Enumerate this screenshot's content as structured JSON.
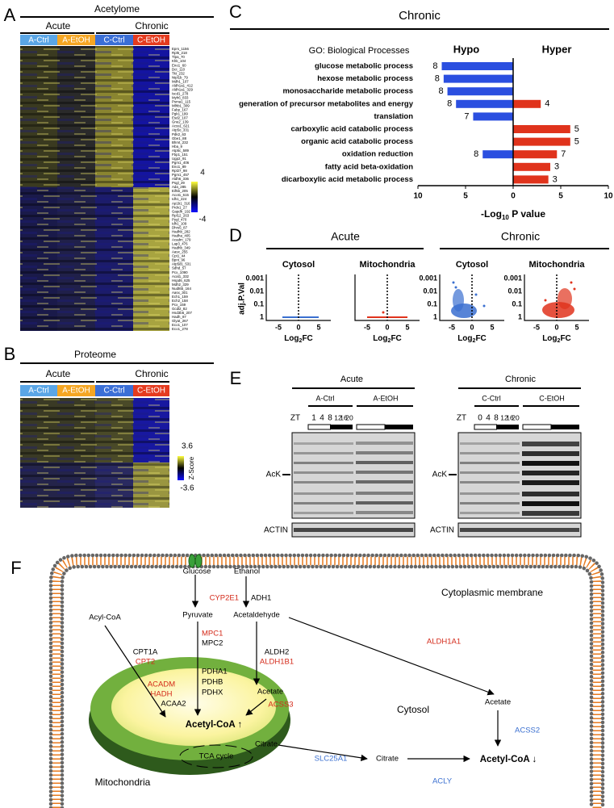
{
  "panels": {
    "A": {
      "letter": "A",
      "title": "Acetylome",
      "conditions": [
        "Acute",
        "Chronic"
      ],
      "groups": [
        "A-Ctrl",
        "A-EtOH",
        "C-Ctrl",
        "C-EtOH"
      ],
      "genes": [
        "Eprs_1156",
        "Rpl6_218",
        "Tlpa_70",
        "Khk_104",
        "Eno1_60",
        "Dct_110",
        "Tkt_232",
        "Nipl1b_79",
        "Mdh1_107",
        "Aldh1a1_412",
        "Aldh1a1_329",
        "Iscd1_278",
        "Myh6_833",
        "Psma1_115",
        "Mlhb1_309",
        "Fabp_167",
        "Pgk1_199",
        "Esd2_107",
        "Gne2_139",
        "Acss1_621",
        "Atp5o_331",
        "Pdk2_63",
        "Gbe1_88",
        "Bhmt_232",
        "Hba_9",
        "Atp5c_589",
        "Fbp1_151",
        "Ugp2_91",
        "Pgm1_406",
        "Eno1_89",
        "Rpl27_98",
        "Pgm1_457",
        "Aldh6_336",
        "Psgl_29",
        "Ada_285",
        "Eif5b_205",
        "Acot1_615",
        "Idh1_224",
        "Ap1b1_316",
        "Prdx1_27",
        "Gapdh_192",
        "Rpl12_263",
        "Pygl_470",
        "Idh1_109",
        "Dhrs5_87",
        "Hadhb_282",
        "Hadha_405",
        "Acadm_179",
        "Lap3_476",
        "Hadhb_349",
        "Aasx_255",
        "Cpt1_44",
        "Bpnt_96",
        "Atp5d1_531",
        "Sdhd_57",
        "Pcx_1090",
        "Acat1_332",
        "Hspd6_625",
        "Mdh2_329",
        "Nudt6b_164",
        "Aasx_301",
        "Ech1_159",
        "Ech2_158",
        "Pcx_159",
        "Gcdl2_82",
        "Hsd3b5_207",
        "Hadh_87",
        "Glyat_267",
        "Eco1_107",
        "Eco1_278"
      ],
      "scale": [
        "4",
        "-4"
      ]
    },
    "B": {
      "letter": "B",
      "title": "Proteome",
      "conditions": [
        "Acute",
        "Chronic"
      ],
      "groups": [
        "A-Ctrl",
        "A-EtOH",
        "C-Ctrl",
        "C-EtOH"
      ],
      "scale": [
        "3.6",
        "-3.6"
      ],
      "scale_label": "Z-Score"
    },
    "D": {
      "letter": "D",
      "conditions": [
        "Acute",
        "Chronic"
      ],
      "compartments": [
        "Cytosol",
        "Mitochondria",
        "Cytosol",
        "Mitochondria"
      ],
      "y_label": "adj.P.Val",
      "yticks": [
        "0.001",
        "0.01",
        "0.1",
        "1"
      ],
      "xticks": [
        "-5",
        "0",
        "5"
      ],
      "x_label": [
        "Log",
        "2",
        "FC"
      ]
    },
    "E": {
      "letter": "E",
      "conditions": [
        "Acute",
        "Chronic"
      ],
      "groups": [
        "A-Ctrl",
        "A-EtOH",
        "C-Ctrl",
        "C-EtOH"
      ],
      "zt_label": "ZT",
      "zt_acute": [
        "1",
        "4",
        "8",
        "12",
        "16",
        "20"
      ],
      "zt_chronic": [
        "0",
        "4",
        "8",
        "12",
        "16",
        "20"
      ],
      "acute_blot": {
        "antibody": "AcK",
        "loading": "ACTIN"
      },
      "chronic_blot": {
        "antibody": "AcK",
        "loading": "ACTIN"
      }
    },
    "F": {
      "letter": "F",
      "labels": {
        "glucose": "Glucose",
        "ethanol": "Ethanol",
        "membrane": "Cytoplasmic membrane",
        "cyp2e1": "CYP2E1",
        "adh1": "ADH1",
        "pyruvate": "Pyruvate",
        "acetaldehyde": "Acetaldehyde",
        "acyl_coa": "Acyl-CoA",
        "mpc1": "MPC1",
        "mpc2": "MPC2",
        "cpt1a": "CPT1A",
        "cpt2": "CPT2",
        "aldh2": "ALDH2",
        "aldh1b1": "ALDH1B1",
        "aldh1a1": "ALDH1A1",
        "pdha1": "PDHA1",
        "pdhb": "PDHB",
        "pdhx": "PDHX",
        "acadm": "ACADM",
        "hadh": "HADH",
        "acaa2": "ACAA2",
        "acetate_mito": "Acetate",
        "acss3": "ACSS3",
        "acetyl_coa_mito": "Acetyl-CoA ↑",
        "cytosol": "Cytosol",
        "acetate_cyto": "Acetate",
        "acss2": "ACSS2",
        "tca": "TCA cycle",
        "citrate_mito": "Citrate",
        "slc25a1": "SLC25A1",
        "citrate_cyto": "Citrate",
        "acly": "ACLY",
        "acetyl_coa_cyto": "Acetyl-CoA ↓",
        "mitochondria": "Mitochondria"
      }
    }
  },
  "chart_data": [
    {
      "type": "bar",
      "orientation": "horizontal",
      "panel_label": "C",
      "title": "Chronic",
      "subtitle": "GO: Biological Processes",
      "x_label": [
        "-Log",
        "10",
        " P value"
      ],
      "categories": [
        "glucose metabolic process",
        "hexose metabolic process",
        "monosaccharide metabolic process",
        "generation of precursor metabolites and energy",
        "translation",
        "carboxylic acid catabolic process",
        "organic acid catabolic process",
        "oxidation reduction",
        "fatty acid beta-oxidation",
        "dicarboxylic acid metabolic process"
      ],
      "series": [
        {
          "name": "Hypo",
          "color": "#2b4fe0",
          "values": [
            -7.5,
            -7.3,
            -6.9,
            -6.0,
            -4.2,
            null,
            null,
            -3.2,
            null,
            null
          ],
          "counts": [
            8,
            8,
            8,
            8,
            7,
            null,
            null,
            8,
            null,
            null
          ]
        },
        {
          "name": "Hyper",
          "color": "#e0331c",
          "values": [
            null,
            null,
            null,
            2.9,
            null,
            6.0,
            6.0,
            4.6,
            3.9,
            3.7
          ],
          "counts": [
            null,
            null,
            null,
            4,
            null,
            5,
            5,
            7,
            3,
            3
          ]
        }
      ],
      "xlim": [
        -10,
        10
      ],
      "xticks": [
        {
          "value": -10,
          "label": "10"
        },
        {
          "value": -5,
          "label": "5"
        },
        0,
        5,
        10
      ]
    }
  ]
}
